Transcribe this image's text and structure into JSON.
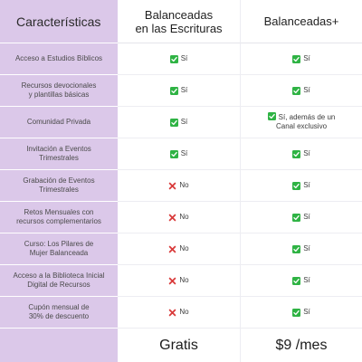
{
  "header": {
    "features_title": "Características",
    "plan1_title_line1": "Balanceadas",
    "plan1_title_line2": "en las Escrituras",
    "plan2_title": "Balanceadas+"
  },
  "rows": [
    {
      "feature_line1": "Acceso a Estudios Bíblicos",
      "feature_line2": "",
      "plan1": {
        "icon": "check-icon",
        "text": "Sí"
      },
      "plan2": {
        "icon": "check-icon",
        "text": "Sí"
      }
    },
    {
      "feature_line1": "Recursos devocionales",
      "feature_line2": "y plantillas básicas",
      "plan1": {
        "icon": "check-icon",
        "text": "Sí"
      },
      "plan2": {
        "icon": "check-icon",
        "text": "Sí"
      }
    },
    {
      "feature_line1": "Comunidad Privada",
      "feature_line2": "",
      "plan1": {
        "icon": "check-icon",
        "text": "Sí"
      },
      "plan2": {
        "icon": "check-icon",
        "text": "Sí, además de un",
        "text_line2": "Canal exclusivo"
      }
    },
    {
      "feature_line1": "Invitación a Eventos",
      "feature_line2": "Trimestrales",
      "plan1": {
        "icon": "check-icon",
        "text": "Sí"
      },
      "plan2": {
        "icon": "check-icon",
        "text": "Sí"
      }
    },
    {
      "feature_line1": "Grabación de Eventos",
      "feature_line2": "Trimestrales",
      "plan1": {
        "icon": "cross-icon",
        "text": "No"
      },
      "plan2": {
        "icon": "check-icon",
        "text": "Sí"
      }
    },
    {
      "feature_line1": "Retos Mensuales con",
      "feature_line2": "recursos complementarios",
      "plan1": {
        "icon": "cross-icon",
        "text": "No"
      },
      "plan2": {
        "icon": "check-icon",
        "text": "Sí"
      }
    },
    {
      "feature_line1": "Curso: Los Pilares de",
      "feature_line2": "Mujer Balanceada",
      "plan1": {
        "icon": "cross-icon",
        "text": "No"
      },
      "plan2": {
        "icon": "check-icon",
        "text": "Sí"
      }
    },
    {
      "feature_line1": "Acceso a la Biblioteca Inicial",
      "feature_line2": "Digital de Recursos",
      "plan1": {
        "icon": "cross-icon",
        "text": "No"
      },
      "plan2": {
        "icon": "check-icon",
        "text": "Sí"
      }
    },
    {
      "feature_line1": "Cupón mensual de",
      "feature_line2": "30% de descuento",
      "plan1": {
        "icon": "cross-icon",
        "text": "No"
      },
      "plan2": {
        "icon": "check-icon",
        "text": "Sí"
      }
    }
  ],
  "footer": {
    "plan1_price": "Gratis",
    "plan2_price": "$9 /mes"
  },
  "colors": {
    "feature_column_bg": "#dbc8e9",
    "check_green": "#2fb344",
    "cross_red": "#d93b3b",
    "divider": "#ededf2"
  }
}
